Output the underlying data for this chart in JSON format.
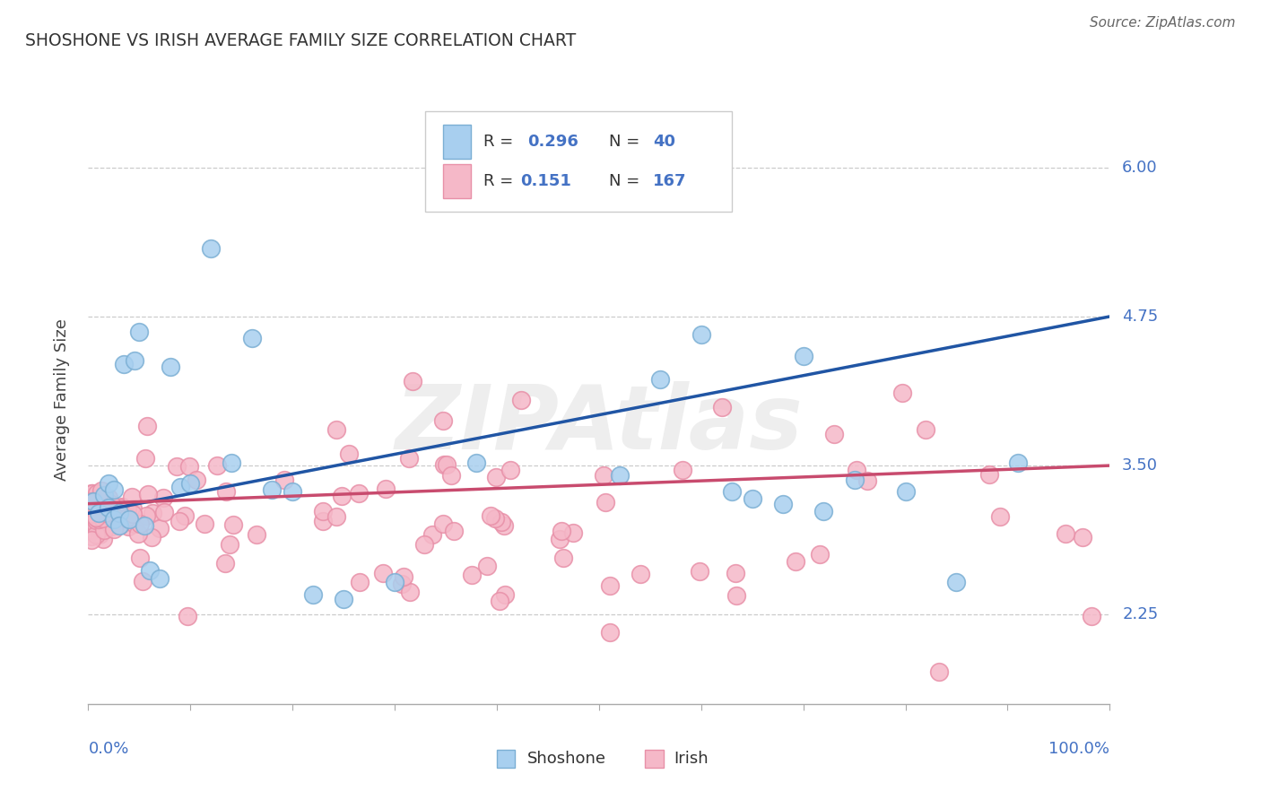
{
  "title": "SHOSHONE VS IRISH AVERAGE FAMILY SIZE CORRELATION CHART",
  "source": "Source: ZipAtlas.com",
  "ylabel": "Average Family Size",
  "ytick_values": [
    2.25,
    3.5,
    4.75,
    6.0
  ],
  "ymin": 1.5,
  "ymax": 6.6,
  "xmin": 0.0,
  "xmax": 1.0,
  "shoshone_color": "#A8CFEF",
  "shoshone_edge_color": "#7BAFD4",
  "irish_color": "#F5B8C8",
  "irish_edge_color": "#E890A8",
  "shoshone_line_color": "#2055A4",
  "irish_line_color": "#C84B6E",
  "watermark": "ZIPAtlas",
  "shoshone_line_x0": 0.0,
  "shoshone_line_y0": 3.1,
  "shoshone_line_x1": 1.0,
  "shoshone_line_y1": 4.75,
  "irish_line_x0": 0.0,
  "irish_line_y0": 3.18,
  "irish_line_x1": 1.0,
  "irish_line_y1": 3.5
}
